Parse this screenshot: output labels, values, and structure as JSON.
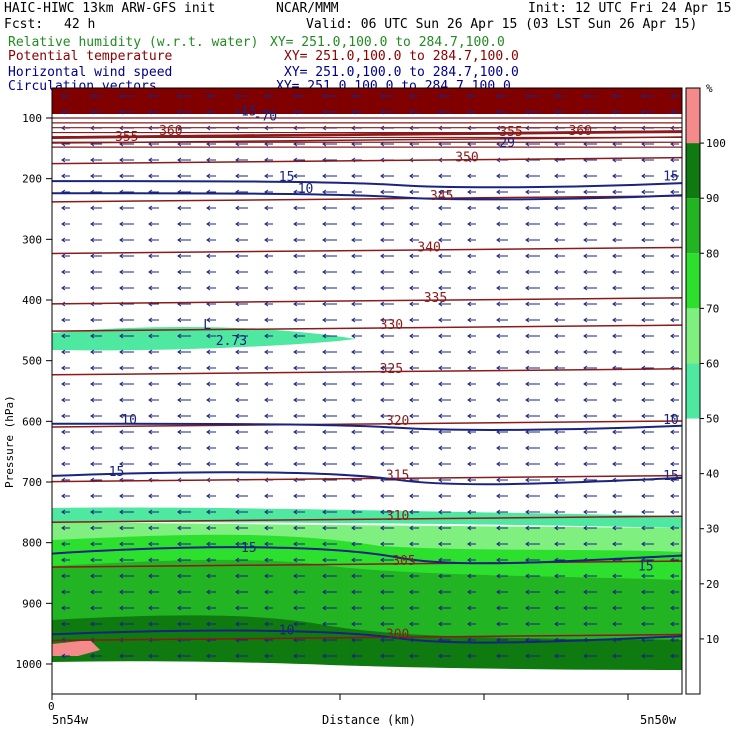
{
  "header": {
    "model": "HAIC-HIWC 13km ARW-GFS init",
    "org": "NCAR/MMM",
    "init": "Init: 12 UTC Fri 24 Apr 15",
    "fcst_label": "Fcst:",
    "fcst_value": "42 h",
    "valid": "Valid: 06 UTC Sun 26 Apr 15 (03 LST Sun 26 Apr 15)",
    "fields": [
      {
        "name": "Relative humidity (w.r.t. water)",
        "xy": "XY= 251.0,100.0 to 284.7,100.0",
        "color": "#228b22"
      },
      {
        "name": "Potential temperature",
        "xy": "XY= 251.0,100.0 to 284.7,100.0",
        "color": "#8b0000"
      },
      {
        "name": "Horizontal wind speed",
        "xy": "XY= 251.0,100.0 to 284.7,100.0",
        "color": "#00008b"
      },
      {
        "name": "Circulation vectors",
        "xy": "XY= 251.0,100.0 to 284.7,100.0",
        "color": "#00008b"
      }
    ]
  },
  "chart_data": {
    "type": "cross-section",
    "ylabel": "Pressure (hPa)",
    "xlabel": "Distance (km)",
    "y_ticks": [
      100,
      200,
      300,
      400,
      500,
      600,
      700,
      800,
      900,
      1000
    ],
    "ylim": [
      1050,
      80
    ],
    "x_tick_zero": "0",
    "x_left_label": "5n54w",
    "x_right_label": "5n50w",
    "colorbar": {
      "unit": "%",
      "levels": [
        10,
        20,
        30,
        40,
        50,
        60,
        70,
        80,
        90,
        100
      ],
      "colors": [
        "#ffffff",
        "#ffffff",
        "#ffffff",
        "#ffffff",
        "#ffffff",
        "#4fe8a0",
        "#7ff07f",
        "#2ee02e",
        "#23b423",
        "#0f7a0f",
        "#f58a8a"
      ]
    },
    "theta_labels": [
      {
        "value": "360",
        "p": 128,
        "x": 0.17
      },
      {
        "value": "360",
        "p": 128,
        "x": 0.82
      },
      {
        "value": "355",
        "p": 138,
        "x": 0.1
      },
      {
        "value": "355",
        "p": 130,
        "x": 0.71
      },
      {
        "value": "350",
        "p": 172,
        "x": 0.64
      },
      {
        "value": "345",
        "p": 235,
        "x": 0.6
      },
      {
        "value": "340",
        "p": 320,
        "x": 0.58
      },
      {
        "value": "335",
        "p": 403,
        "x": 0.59
      },
      {
        "value": "330",
        "p": 448,
        "x": 0.52
      },
      {
        "value": "325",
        "p": 520,
        "x": 0.52
      },
      {
        "value": "320",
        "p": 606,
        "x": 0.53
      },
      {
        "value": "315",
        "p": 696,
        "x": 0.53
      },
      {
        "value": "310",
        "p": 763,
        "x": 0.53
      },
      {
        "value": "305",
        "p": 837,
        "x": 0.54
      },
      {
        "value": "300",
        "p": 958,
        "x": 0.53
      }
    ],
    "wind_labels": [
      {
        "value": "15",
        "p": 204,
        "x": 0.36
      },
      {
        "value": "15",
        "p": 203,
        "x": 0.97
      },
      {
        "value": "10",
        "p": 224,
        "x": 0.39
      },
      {
        "value": "15",
        "p": 96,
        "x": 0.3
      },
      {
        "value": "10",
        "p": 604,
        "x": 0.11
      },
      {
        "value": "10",
        "p": 604,
        "x": 0.97
      },
      {
        "value": "15",
        "p": 690,
        "x": 0.09
      },
      {
        "value": "15",
        "p": 697,
        "x": 0.97
      },
      {
        "value": "15",
        "p": 815,
        "x": 0.3
      },
      {
        "value": "15",
        "p": 846,
        "x": 0.93
      },
      {
        "value": "10",
        "p": 951,
        "x": 0.36
      },
      {
        "value": "-70",
        "p": 104,
        "x": 0.32
      },
      {
        "value": "29",
        "p": 148,
        "x": 0.71
      }
    ],
    "annotations": [
      {
        "text": "L",
        "p": 448,
        "x": 0.24
      },
      {
        "text": "2.73",
        "p": 474,
        "x": 0.26
      }
    ]
  }
}
